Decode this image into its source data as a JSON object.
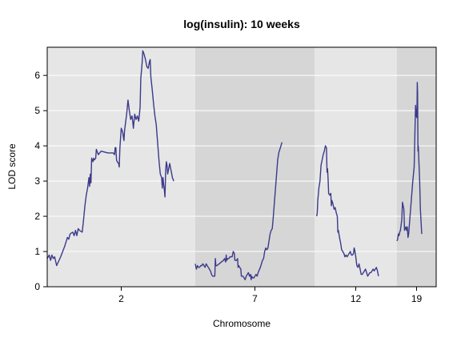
{
  "chart_data": {
    "type": "line",
    "title": "log(insulin): 10 weeks",
    "xlabel": "Chromosome",
    "ylabel": "LOD score",
    "ylim": [
      0,
      6.8
    ],
    "yticks": [
      0,
      1,
      2,
      3,
      4,
      5,
      6
    ],
    "grid": true,
    "line_color": "#3b3a8a",
    "panel_colors": [
      "#e6e6e6",
      "#d6d6d6"
    ],
    "gridline_color": "#ffffff",
    "segments": [
      {
        "chromosome": "2",
        "tick_label": "2",
        "x_range": [
          0,
          110
        ],
        "points": [
          [
            0,
            0.8
          ],
          [
            1.5,
            0.9
          ],
          [
            2.5,
            0.75
          ],
          [
            3.5,
            0.9
          ],
          [
            4.5,
            0.8
          ],
          [
            5.5,
            0.85
          ],
          [
            7,
            0.6
          ],
          [
            10,
            0.85
          ],
          [
            13,
            1.15
          ],
          [
            15,
            1.4
          ],
          [
            16,
            1.35
          ],
          [
            17,
            1.5
          ],
          [
            19,
            1.55
          ],
          [
            20,
            1.45
          ],
          [
            21,
            1.6
          ],
          [
            22,
            1.45
          ],
          [
            23,
            1.65
          ],
          [
            24,
            1.6
          ],
          [
            26,
            1.55
          ],
          [
            27,
            1.9
          ],
          [
            28,
            2.3
          ],
          [
            29,
            2.6
          ],
          [
            30,
            2.8
          ],
          [
            31,
            3.1
          ],
          [
            31.5,
            2.85
          ],
          [
            32,
            3.2
          ],
          [
            32.5,
            2.95
          ],
          [
            33,
            3.65
          ],
          [
            34,
            3.55
          ],
          [
            34.5,
            3.65
          ],
          [
            35,
            3.6
          ],
          [
            36,
            3.65
          ],
          [
            36.5,
            3.9
          ],
          [
            37,
            3.85
          ],
          [
            38,
            3.75
          ],
          [
            39,
            3.8
          ],
          [
            40,
            3.85
          ],
          [
            45,
            3.8
          ],
          [
            49,
            3.8
          ],
          [
            50,
            3.75
          ],
          [
            50.5,
            3.95
          ],
          [
            51,
            3.95
          ],
          [
            51.5,
            3.6
          ],
          [
            52,
            3.55
          ],
          [
            53,
            3.5
          ],
          [
            53.5,
            3.4
          ],
          [
            54,
            3.95
          ],
          [
            55,
            4.5
          ],
          [
            56,
            4.4
          ],
          [
            57,
            4.15
          ],
          [
            57.5,
            4.45
          ],
          [
            58,
            4.6
          ],
          [
            59,
            4.9
          ],
          [
            60,
            5.3
          ],
          [
            61,
            5.0
          ],
          [
            62,
            4.75
          ],
          [
            63,
            4.85
          ],
          [
            63.5,
            4.7
          ],
          [
            64,
            4.5
          ],
          [
            65,
            4.9
          ],
          [
            66,
            4.75
          ],
          [
            67,
            4.85
          ],
          [
            68,
            4.7
          ],
          [
            69,
            5.1
          ],
          [
            69.5,
            5.9
          ],
          [
            70.5,
            6.35
          ],
          [
            71,
            6.7
          ],
          [
            72,
            6.6
          ],
          [
            73,
            6.45
          ],
          [
            74,
            6.25
          ],
          [
            75,
            6.2
          ],
          [
            75.5,
            6.3
          ],
          [
            76,
            6.4
          ],
          [
            76.5,
            6.45
          ],
          [
            77,
            5.95
          ],
          [
            78,
            5.6
          ],
          [
            79,
            5.2
          ],
          [
            80,
            4.85
          ],
          [
            81,
            4.6
          ],
          [
            82,
            4.1
          ],
          [
            83,
            3.6
          ],
          [
            84,
            3.2
          ],
          [
            85,
            3.1
          ],
          [
            85.5,
            2.8
          ],
          [
            86,
            3.1
          ],
          [
            86.5,
            2.9
          ],
          [
            87,
            2.75
          ],
          [
            87.5,
            2.55
          ],
          [
            88,
            3.3
          ],
          [
            88.5,
            3.55
          ],
          [
            89,
            3.45
          ],
          [
            89.5,
            3.2
          ],
          [
            90,
            3.3
          ],
          [
            91,
            3.5
          ],
          [
            92,
            3.3
          ],
          [
            93,
            3.1
          ],
          [
            94,
            3.0
          ]
        ]
      },
      {
        "chromosome": "7",
        "tick_label": "7",
        "x_range": [
          0,
          110
        ],
        "points": [
          [
            0,
            0.65
          ],
          [
            1,
            0.5
          ],
          [
            2,
            0.6
          ],
          [
            3,
            0.55
          ],
          [
            4,
            0.55
          ],
          [
            5,
            0.6
          ],
          [
            6,
            0.6
          ],
          [
            7,
            0.65
          ],
          [
            8,
            0.6
          ],
          [
            9,
            0.55
          ],
          [
            10,
            0.65
          ],
          [
            11,
            0.6
          ],
          [
            12,
            0.55
          ],
          [
            13,
            0.5
          ],
          [
            14,
            0.45
          ],
          [
            15,
            0.35
          ],
          [
            16,
            0.3
          ],
          [
            17,
            0.3
          ],
          [
            18,
            0.3
          ],
          [
            18.5,
            0.8
          ],
          [
            19,
            0.6
          ],
          [
            20,
            0.6
          ],
          [
            22,
            0.65
          ],
          [
            24,
            0.7
          ],
          [
            26,
            0.75
          ],
          [
            27,
            0.8
          ],
          [
            28,
            0.7
          ],
          [
            28.5,
            0.9
          ],
          [
            29,
            0.75
          ],
          [
            30,
            0.8
          ],
          [
            31,
            0.8
          ],
          [
            32,
            0.85
          ],
          [
            33,
            0.85
          ],
          [
            34,
            0.85
          ],
          [
            35,
            1.0
          ],
          [
            36,
            0.95
          ],
          [
            36.5,
            0.75
          ],
          [
            37,
            0.75
          ],
          [
            38,
            0.75
          ],
          [
            39,
            0.8
          ],
          [
            39.5,
            0.55
          ],
          [
            40,
            0.6
          ],
          [
            41,
            0.55
          ],
          [
            42,
            0.5
          ],
          [
            42.5,
            0.3
          ],
          [
            43,
            0.3
          ],
          [
            44,
            0.3
          ],
          [
            45,
            0.25
          ],
          [
            46,
            0.2
          ],
          [
            47,
            0.3
          ],
          [
            48,
            0.35
          ],
          [
            49,
            0.4
          ],
          [
            50,
            0.3
          ],
          [
            51,
            0.35
          ],
          [
            51.5,
            0.2
          ],
          [
            52,
            0.3
          ],
          [
            53,
            0.25
          ],
          [
            54,
            0.25
          ],
          [
            55,
            0.3
          ],
          [
            56,
            0.35
          ],
          [
            57,
            0.3
          ],
          [
            58,
            0.4
          ],
          [
            60,
            0.55
          ],
          [
            62,
            0.75
          ],
          [
            63,
            0.8
          ],
          [
            64,
            1.0
          ],
          [
            65,
            1.1
          ],
          [
            66,
            1.05
          ],
          [
            67,
            1.1
          ],
          [
            68,
            1.3
          ],
          [
            69,
            1.5
          ],
          [
            70,
            1.6
          ],
          [
            71,
            1.65
          ],
          [
            72,
            2.0
          ],
          [
            73,
            2.4
          ],
          [
            74,
            2.8
          ],
          [
            75,
            3.2
          ],
          [
            76,
            3.6
          ],
          [
            77,
            3.8
          ],
          [
            78,
            3.9
          ],
          [
            79,
            4.0
          ],
          [
            80,
            4.1
          ]
        ]
      },
      {
        "chromosome": "12",
        "tick_label": "12",
        "x_range": [
          0,
          76
        ],
        "points": [
          [
            2,
            2.0
          ],
          [
            2.5,
            2.1
          ],
          [
            3,
            2.45
          ],
          [
            4,
            2.8
          ],
          [
            5,
            3.0
          ],
          [
            6,
            3.45
          ],
          [
            7,
            3.6
          ],
          [
            8,
            3.75
          ],
          [
            9,
            3.85
          ],
          [
            10,
            4.0
          ],
          [
            11,
            3.95
          ],
          [
            11.5,
            3.25
          ],
          [
            12,
            3.35
          ],
          [
            12.5,
            3.05
          ],
          [
            13,
            2.65
          ],
          [
            14,
            2.6
          ],
          [
            15,
            2.65
          ],
          [
            15.5,
            2.3
          ],
          [
            16,
            2.45
          ],
          [
            17,
            2.35
          ],
          [
            18,
            2.2
          ],
          [
            19,
            2.25
          ],
          [
            20,
            2.1
          ],
          [
            21,
            2.0
          ],
          [
            21.5,
            1.55
          ],
          [
            22,
            1.6
          ],
          [
            23,
            1.4
          ],
          [
            24,
            1.25
          ],
          [
            25,
            1.05
          ],
          [
            26,
            1.0
          ],
          [
            27,
            0.95
          ],
          [
            28,
            0.85
          ],
          [
            29,
            0.9
          ],
          [
            30,
            0.85
          ],
          [
            31,
            0.9
          ],
          [
            32,
            0.95
          ],
          [
            33,
            1.0
          ],
          [
            34,
            0.9
          ],
          [
            35,
            0.9
          ],
          [
            36,
            0.95
          ],
          [
            36.5,
            1.1
          ],
          [
            37,
            1.05
          ],
          [
            38,
            0.85
          ],
          [
            39,
            0.6
          ],
          [
            40,
            0.55
          ],
          [
            41,
            0.65
          ],
          [
            42,
            0.5
          ],
          [
            43,
            0.35
          ],
          [
            44,
            0.35
          ],
          [
            45,
            0.4
          ],
          [
            46,
            0.45
          ],
          [
            47,
            0.5
          ],
          [
            48,
            0.4
          ],
          [
            49,
            0.3
          ],
          [
            50,
            0.35
          ],
          [
            51,
            0.4
          ],
          [
            52,
            0.4
          ],
          [
            53,
            0.45
          ],
          [
            54,
            0.5
          ],
          [
            55,
            0.45
          ],
          [
            56,
            0.5
          ],
          [
            57,
            0.55
          ],
          [
            58,
            0.45
          ],
          [
            59,
            0.3
          ]
        ]
      },
      {
        "chromosome": "19",
        "tick_label": "19",
        "x_range": [
          0,
          57
        ],
        "points": [
          [
            0,
            1.3
          ],
          [
            1,
            1.35
          ],
          [
            2,
            1.5
          ],
          [
            3,
            1.45
          ],
          [
            4,
            1.55
          ],
          [
            5,
            1.6
          ],
          [
            6,
            1.75
          ],
          [
            7,
            1.9
          ],
          [
            8,
            2.4
          ],
          [
            9,
            2.3
          ],
          [
            10,
            2.2
          ],
          [
            11,
            1.6
          ],
          [
            12,
            1.65
          ],
          [
            13,
            1.7
          ],
          [
            14,
            1.6
          ],
          [
            15,
            1.7
          ],
          [
            16,
            1.4
          ],
          [
            17,
            1.5
          ],
          [
            19,
            2.0
          ],
          [
            21,
            2.5
          ],
          [
            23,
            3.0
          ],
          [
            25,
            3.4
          ],
          [
            26,
            4.3
          ],
          [
            27,
            5.15
          ],
          [
            28,
            4.85
          ],
          [
            29,
            4.8
          ],
          [
            29.5,
            5.8
          ],
          [
            30,
            5.5
          ],
          [
            30.5,
            3.85
          ],
          [
            31,
            4.0
          ],
          [
            32,
            3.5
          ],
          [
            33,
            3.0
          ],
          [
            34,
            2.2
          ],
          [
            35,
            1.85
          ],
          [
            36,
            1.5
          ]
        ]
      }
    ]
  }
}
